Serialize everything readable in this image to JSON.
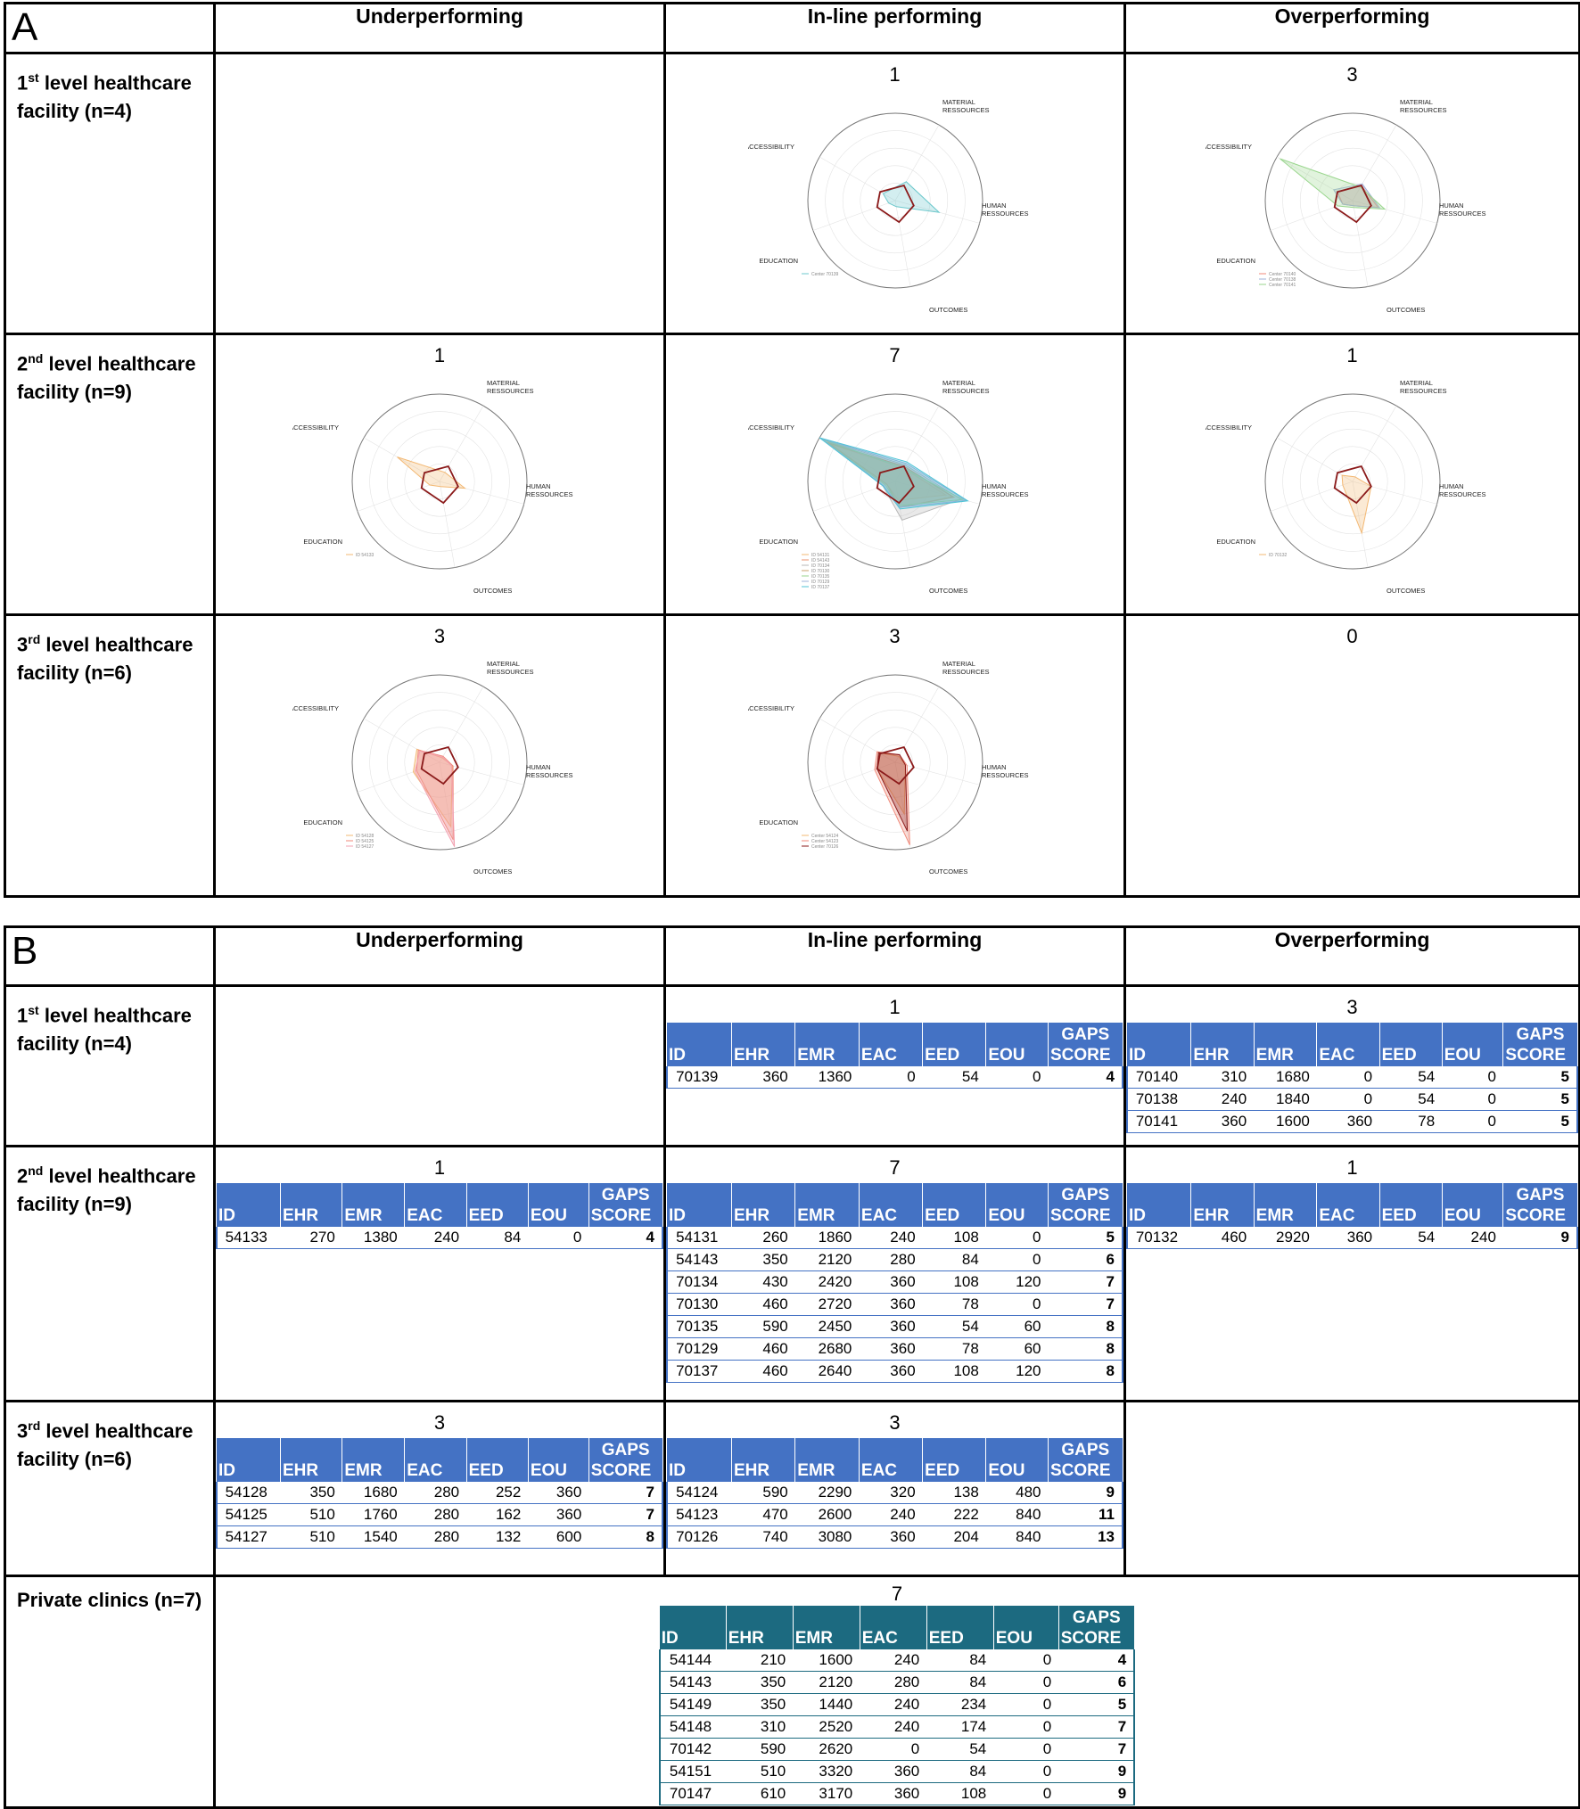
{
  "columns": [
    "Underperforming",
    "In-line performing",
    "Overperforming"
  ],
  "axis_labels": {
    "material": [
      "MATERIAL",
      "RESSOURCES"
    ],
    "human": [
      "HUMAN",
      "RESSOURCES"
    ],
    "outcomes": "OUTCOMES",
    "education": "EDUCATION",
    "accessibility": "ACCESSIBILITY"
  },
  "colors": {
    "accent": "#4472c4",
    "accent_private": "#1c6a80",
    "reference": "#8b1a1a"
  },
  "panel_a": {
    "letter": "A",
    "rows": [
      {
        "label_prefix": "1",
        "label_sup": "st",
        "label_rest": " level healthcare facility (n=4)",
        "counts": [
          "",
          "1",
          "3"
        ]
      },
      {
        "label_prefix": "2",
        "label_sup": "nd",
        "label_rest": " level healthcare facility (n=9)",
        "counts": [
          "1",
          "7",
          "1"
        ]
      },
      {
        "label_prefix": "3",
        "label_sup": "rd",
        "label_rest": " level healthcare facility (n=6)",
        "counts": [
          "3",
          "3",
          "0"
        ]
      }
    ]
  },
  "chart_data": [
    {
      "type": "radar",
      "group": "1st level, In-line performing",
      "axes": [
        "MATERIAL RESSOURCES",
        "HUMAN RESSOURCES",
        "OUTCOMES",
        "EDUCATION",
        "ACCESSIBILITY"
      ],
      "series": [
        {
          "name": "Center 70139",
          "color": "#6cc8cc",
          "values": [
            0.25,
            0.52,
            0.07,
            0.08,
            0.16
          ]
        }
      ],
      "reference": [
        0.2,
        0.22,
        0.25,
        0.22,
        0.2
      ]
    },
    {
      "type": "radar",
      "group": "1st level, Overperforming",
      "axes": [
        "MATERIAL RESSOURCES",
        "HUMAN RESSOURCES",
        "OUTCOMES",
        "EDUCATION",
        "ACCESSIBILITY"
      ],
      "series": [
        {
          "name": "Center 70140",
          "color": "#f08a7a",
          "values": [
            0.2,
            0.3,
            0.06,
            0.12,
            0.2
          ]
        },
        {
          "name": "Center 70138",
          "color": "#9fb0d8",
          "values": [
            0.22,
            0.32,
            0.06,
            0.12,
            0.25
          ]
        },
        {
          "name": "Center 70141",
          "color": "#9ad68e",
          "values": [
            0.18,
            0.38,
            0.08,
            0.18,
            0.96
          ]
        }
      ],
      "reference": [
        0.2,
        0.22,
        0.25,
        0.22,
        0.2
      ]
    },
    {
      "type": "radar",
      "group": "2nd level, Underperforming",
      "axes": [
        "MATERIAL RESSOURCES",
        "HUMAN RESSOURCES",
        "OUTCOMES",
        "EDUCATION",
        "ACCESSIBILITY"
      ],
      "series": [
        {
          "name": "ID 54133",
          "color": "#f3b873",
          "values": [
            0.12,
            0.3,
            0.06,
            0.12,
            0.56
          ]
        }
      ],
      "reference": [
        0.2,
        0.22,
        0.25,
        0.22,
        0.2
      ]
    },
    {
      "type": "radar",
      "group": "2nd level, In-line performing",
      "axes": [
        "MATERIAL RESSOURCES",
        "HUMAN RESSOURCES",
        "OUTCOMES",
        "EDUCATION",
        "ACCESSIBILITY"
      ],
      "series": [
        {
          "name": "ID 54131",
          "color": "#f3b873",
          "values": [
            0.18,
            0.6,
            0.22,
            0.1,
            0.86
          ]
        },
        {
          "name": "ID 54143",
          "color": "#e8906e",
          "values": [
            0.2,
            0.7,
            0.3,
            0.12,
            0.9
          ]
        },
        {
          "name": "ID 70134",
          "color": "#b7b7b7",
          "values": [
            0.22,
            0.78,
            0.45,
            0.15,
            0.95
          ]
        },
        {
          "name": "ID 70130",
          "color": "#c9a26b",
          "values": [
            0.2,
            0.68,
            0.3,
            0.1,
            0.88
          ]
        },
        {
          "name": "ID 70135",
          "color": "#9ad68e",
          "values": [
            0.18,
            0.8,
            0.28,
            0.12,
            0.97
          ]
        },
        {
          "name": "ID 70129",
          "color": "#9fb0d8",
          "values": [
            0.24,
            0.84,
            0.3,
            0.14,
            0.98
          ]
        },
        {
          "name": "ID 70137",
          "color": "#4fc3d6",
          "values": [
            0.26,
            0.86,
            0.32,
            0.15,
            1.0
          ]
        }
      ],
      "reference": [
        0.2,
        0.22,
        0.25,
        0.22,
        0.2
      ]
    },
    {
      "type": "radar",
      "group": "2nd level, Overperforming",
      "axes": [
        "MATERIAL RESSOURCES",
        "HUMAN RESSOURCES",
        "OUTCOMES",
        "EDUCATION",
        "ACCESSIBILITY"
      ],
      "series": [
        {
          "name": "ID 70132",
          "color": "#f3b873",
          "values": [
            0.06,
            0.22,
            0.6,
            0.12,
            0.14
          ]
        }
      ],
      "reference": [
        0.2,
        0.22,
        0.25,
        0.22,
        0.2
      ]
    },
    {
      "type": "radar",
      "group": "3rd level, Underperforming",
      "axes": [
        "MATERIAL RESSOURCES",
        "HUMAN RESSOURCES",
        "OUTCOMES",
        "EDUCATION",
        "ACCESSIBILITY"
      ],
      "series": [
        {
          "name": "ID 54128",
          "color": "#f3b873",
          "values": [
            0.06,
            0.15,
            0.75,
            0.32,
            0.3
          ]
        },
        {
          "name": "ID 54125",
          "color": "#f08a7a",
          "values": [
            0.08,
            0.16,
            0.9,
            0.28,
            0.28
          ]
        },
        {
          "name": "ID 54127",
          "color": "#f3a0b0",
          "values": [
            0.07,
            0.14,
            0.98,
            0.3,
            0.26
          ]
        }
      ],
      "reference": [
        0.2,
        0.22,
        0.25,
        0.22,
        0.2
      ]
    },
    {
      "type": "radar",
      "group": "3rd level, In-line performing",
      "axes": [
        "MATERIAL RESSOURCES",
        "HUMAN RESSOURCES",
        "OUTCOMES",
        "EDUCATION",
        "ACCESSIBILITY"
      ],
      "series": [
        {
          "name": "Center 54124",
          "color": "#f3b873",
          "values": [
            0.08,
            0.12,
            0.6,
            0.22,
            0.22
          ]
        },
        {
          "name": "Center 54123",
          "color": "#f08a7a",
          "values": [
            0.1,
            0.14,
            0.96,
            0.25,
            0.24
          ]
        },
        {
          "name": "Center 70126",
          "color": "#8b1a1a",
          "values": [
            0.1,
            0.12,
            0.8,
            0.22,
            0.22
          ]
        }
      ],
      "reference": [
        0.2,
        0.22,
        0.25,
        0.22,
        0.2
      ]
    }
  ],
  "panel_b": {
    "letter": "B",
    "table_headers": [
      "ID",
      "EHR",
      "EMR",
      "EAC",
      "EED",
      "EOU"
    ],
    "gaps_header": [
      "GAPS",
      "SCORE"
    ],
    "rows": [
      {
        "label_prefix": "1",
        "label_sup": "st",
        "label_rest": " level healthcare facility (n=4)",
        "cells": [
          {
            "count": "",
            "rows": []
          },
          {
            "count": "1",
            "rows": [
              [
                "70139",
                "360",
                "1360",
                "0",
                "54",
                "0",
                "4"
              ]
            ]
          },
          {
            "count": "3",
            "rows": [
              [
                "70140",
                "310",
                "1680",
                "0",
                "54",
                "0",
                "5"
              ],
              [
                "70138",
                "240",
                "1840",
                "0",
                "54",
                "0",
                "5"
              ],
              [
                "70141",
                "360",
                "1600",
                "360",
                "78",
                "0",
                "5"
              ]
            ]
          }
        ]
      },
      {
        "label_prefix": "2",
        "label_sup": "nd",
        "label_rest": " level healthcare facility (n=9)",
        "cells": [
          {
            "count": "1",
            "rows": [
              [
                "54133",
                "270",
                "1380",
                "240",
                "84",
                "0",
                "4"
              ]
            ]
          },
          {
            "count": "7",
            "rows": [
              [
                "54131",
                "260",
                "1860",
                "240",
                "108",
                "0",
                "5"
              ],
              [
                "54143",
                "350",
                "2120",
                "280",
                "84",
                "0",
                "6"
              ],
              [
                "70134",
                "430",
                "2420",
                "360",
                "108",
                "120",
                "7"
              ],
              [
                "70130",
                "460",
                "2720",
                "360",
                "78",
                "0",
                "7"
              ],
              [
                "70135",
                "590",
                "2450",
                "360",
                "54",
                "60",
                "8"
              ],
              [
                "70129",
                "460",
                "2680",
                "360",
                "78",
                "60",
                "8"
              ],
              [
                "70137",
                "460",
                "2640",
                "360",
                "108",
                "120",
                "8"
              ]
            ]
          },
          {
            "count": "1",
            "rows": [
              [
                "70132",
                "460",
                "2920",
                "360",
                "54",
                "240",
                "9"
              ]
            ]
          }
        ]
      },
      {
        "label_prefix": "3",
        "label_sup": "rd",
        "label_rest": " level healthcare facility (n=6)",
        "cells": [
          {
            "count": "3",
            "rows": [
              [
                "54128",
                "350",
                "1680",
                "280",
                "252",
                "360",
                "7"
              ],
              [
                "54125",
                "510",
                "1760",
                "280",
                "162",
                "360",
                "7"
              ],
              [
                "54127",
                "510",
                "1540",
                "280",
                "132",
                "600",
                "8"
              ]
            ]
          },
          {
            "count": "3",
            "rows": [
              [
                "54124",
                "590",
                "2290",
                "320",
                "138",
                "480",
                "9"
              ],
              [
                "54123",
                "470",
                "2600",
                "240",
                "222",
                "840",
                "11"
              ],
              [
                "70126",
                "740",
                "3080",
                "360",
                "204",
                "840",
                "13"
              ]
            ]
          },
          {
            "count": "",
            "rows": []
          }
        ]
      }
    ],
    "private": {
      "label": "Private clinics (n=7)",
      "count": "7",
      "rows": [
        [
          "54144",
          "210",
          "1600",
          "240",
          "84",
          "0",
          "4"
        ],
        [
          "54143",
          "350",
          "2120",
          "280",
          "84",
          "0",
          "6"
        ],
        [
          "54149",
          "350",
          "1440",
          "240",
          "234",
          "0",
          "5"
        ],
        [
          "54148",
          "310",
          "2520",
          "240",
          "174",
          "0",
          "7"
        ],
        [
          "70142",
          "590",
          "2620",
          "0",
          "54",
          "0",
          "7"
        ],
        [
          "54151",
          "510",
          "3320",
          "360",
          "84",
          "0",
          "9"
        ],
        [
          "70147",
          "610",
          "3170",
          "360",
          "108",
          "0",
          "9"
        ]
      ]
    }
  }
}
